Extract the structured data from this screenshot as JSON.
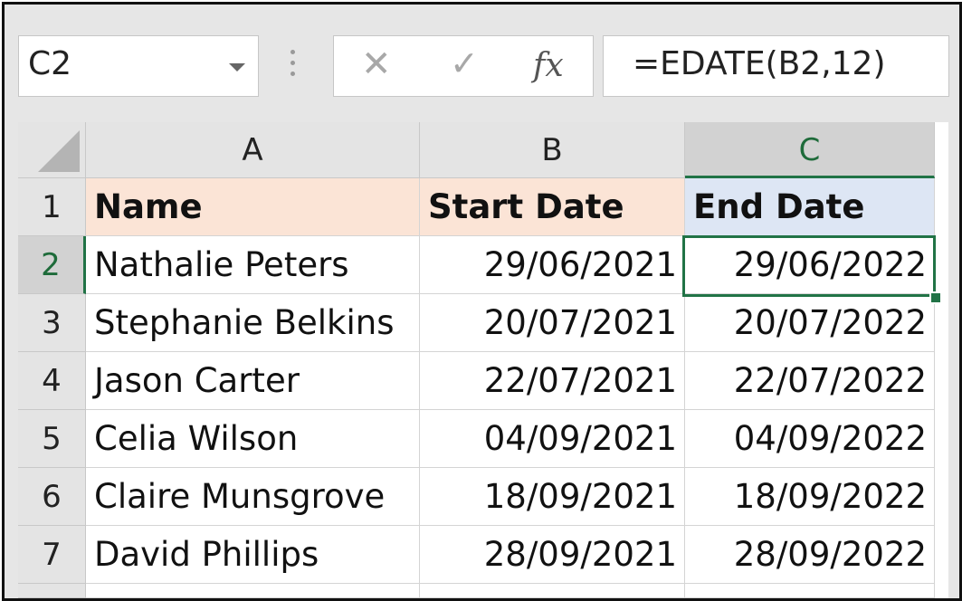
{
  "name_box": {
    "value": "C2"
  },
  "formula_bar": {
    "cancel_icon": "✕",
    "enter_icon": "✓",
    "fx_label": "fx",
    "formula": "=EDATE(B2,12)"
  },
  "columns": [
    "A",
    "B",
    "C"
  ],
  "rows": [
    "1",
    "2",
    "3",
    "4",
    "5",
    "6",
    "7"
  ],
  "header": {
    "name": "Name",
    "start": "Start Date",
    "end": "End Date"
  },
  "data": [
    {
      "name": "Nathalie Peters",
      "start": "29/06/2021",
      "end": "29/06/2022"
    },
    {
      "name": "Stephanie Belkins",
      "start": "20/07/2021",
      "end": "20/07/2022"
    },
    {
      "name": "Jason Carter",
      "start": "22/07/2021",
      "end": "22/07/2022"
    },
    {
      "name": "Celia Wilson",
      "start": "04/09/2021",
      "end": "04/09/2022"
    },
    {
      "name": "Claire Munsgrove",
      "start": "18/09/2021",
      "end": "18/09/2022"
    },
    {
      "name": "David Phillips",
      "start": "28/09/2021",
      "end": "28/09/2022"
    }
  ],
  "colors": {
    "accent": "#217346",
    "header_fill": "#fbe4d6",
    "selected_header_fill": "#dde6f4"
  }
}
